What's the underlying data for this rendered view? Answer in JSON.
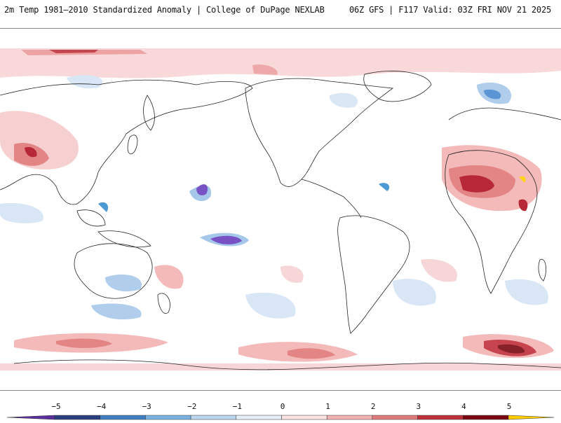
{
  "header": {
    "title": "2m Temp 1981–2010 Standardized Anomaly | College of DuPage NEXLAB",
    "run_info": "06Z GFS | F117 Valid: 03Z FRI NOV 21 2025"
  },
  "map": {
    "projection": "Cylindrical equidistant, Pacific-centered",
    "variable": "2m Temperature Standardized Anomaly",
    "colors": {
      "strong_cold": "#6a3fbf",
      "cold": "#3a8fd0",
      "mild_cold": "#c8ddf2",
      "mild_warm": "#f6d2d2",
      "warm": "#e07878",
      "strong_warm": "#b01020",
      "extreme_warm": "#ffd000",
      "land_outline": "#222222"
    }
  },
  "colorbar": {
    "ticks": [
      "−5",
      "−4",
      "−3",
      "−2",
      "−1",
      "0",
      "1",
      "2",
      "3",
      "4",
      "5"
    ],
    "colors": [
      "#5b2f9e",
      "#2a3f80",
      "#3d7fc2",
      "#79b1e0",
      "#bcd6ef",
      "#e6eff8",
      "#fbe3e3",
      "#f3b2b2",
      "#e07b7b",
      "#c0303a",
      "#7a0812",
      "#ffcc00"
    ]
  }
}
